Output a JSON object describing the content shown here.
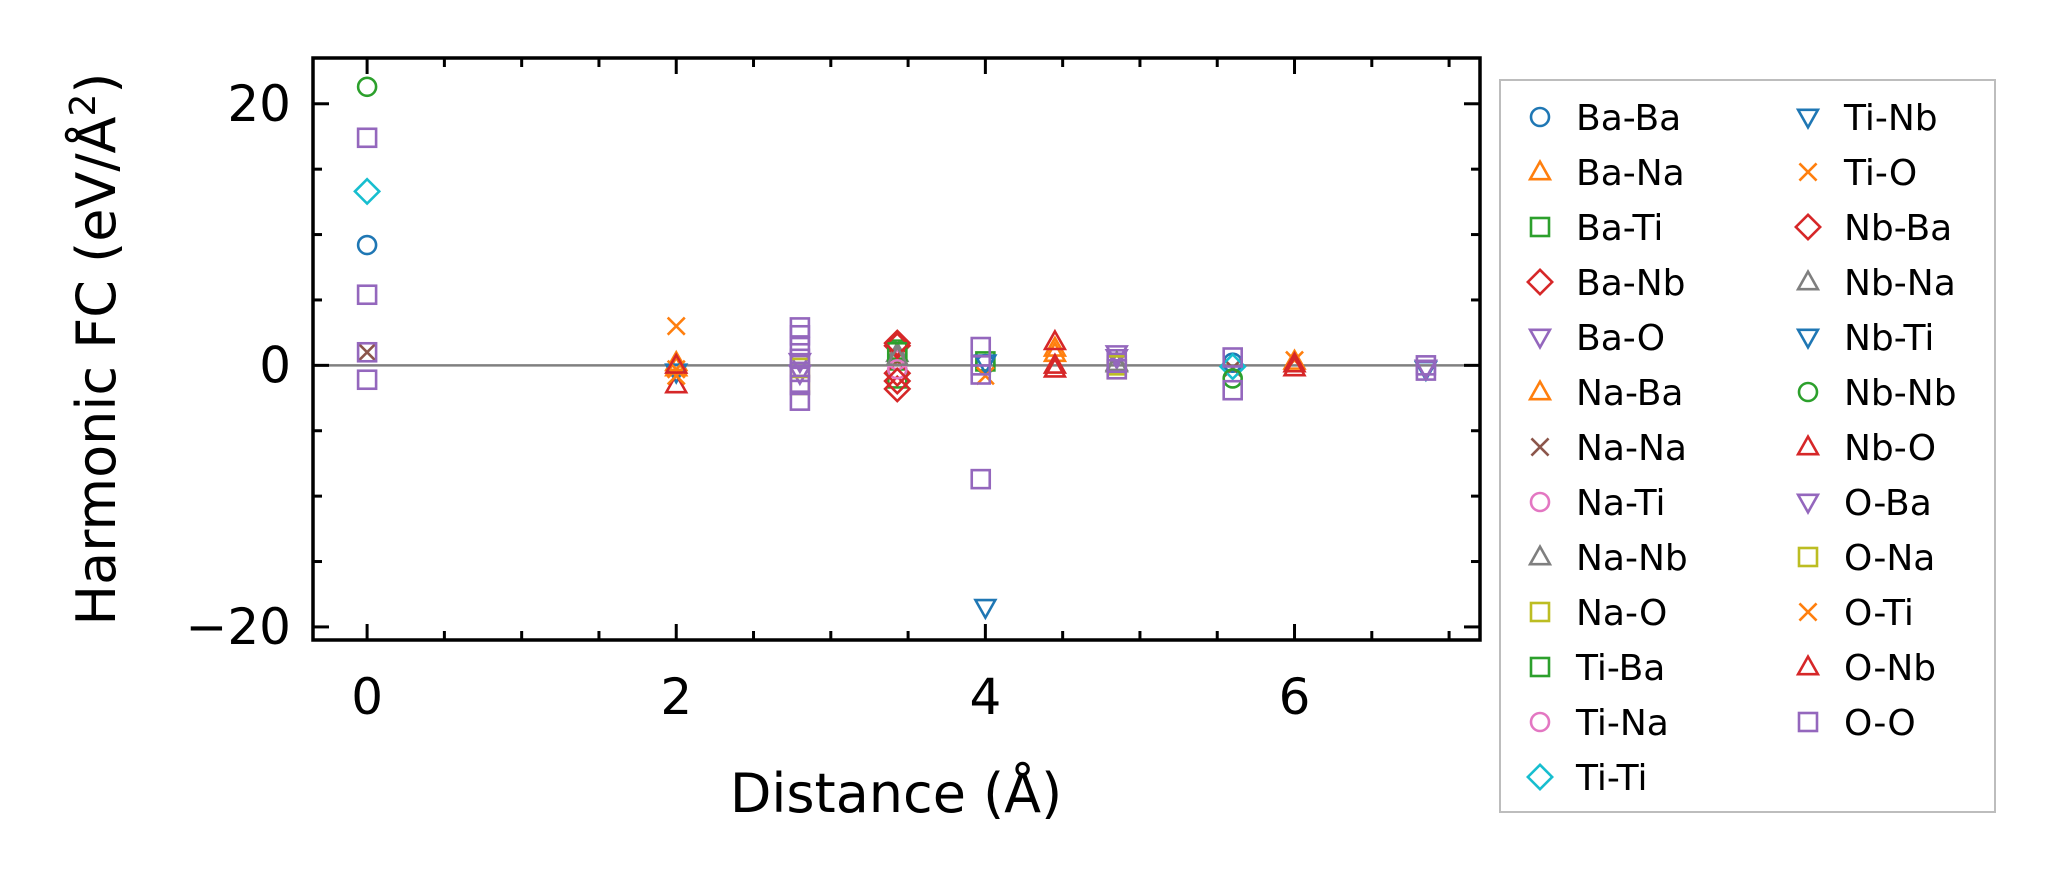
{
  "chart_data": {
    "type": "scatter",
    "title": "",
    "xlabel": "Distance (Å)",
    "ylabel": "Harmonic FC (eV/Å²)",
    "xlim": [
      -0.35,
      7.2
    ],
    "ylim": [
      -21,
      23.5
    ],
    "xticks": [
      0,
      2,
      4,
      6
    ],
    "yticks": [
      -20,
      0,
      20
    ],
    "xtick_labels": [
      "0",
      "2",
      "4",
      "6"
    ],
    "ytick_labels": [
      "−20",
      "0",
      "20"
    ],
    "zero_line": true,
    "grid": false,
    "legend": {
      "position": "right-outside",
      "columns": 2
    },
    "series": [
      {
        "name": "Ba-Ba",
        "marker": "circle",
        "color": "#1f77b4",
        "points": [
          [
            0,
            9.2
          ],
          [
            4.0,
            0.1
          ],
          [
            5.6,
            0.2
          ]
        ]
      },
      {
        "name": "Ba-Na",
        "marker": "triangle-up",
        "color": "#ff7f0e",
        "points": [
          [
            2.0,
            0.2
          ],
          [
            4.45,
            1.3
          ],
          [
            6.0,
            0.3
          ]
        ]
      },
      {
        "name": "Ba-Ti",
        "marker": "square",
        "color": "#2ca02c",
        "points": [
          [
            3.43,
            1.2
          ],
          [
            3.43,
            -1.0
          ]
        ]
      },
      {
        "name": "Ba-Nb",
        "marker": "diamond",
        "color": "#d62728",
        "points": [
          [
            3.43,
            1.5
          ],
          [
            3.43,
            -0.6
          ],
          [
            3.43,
            -1.8
          ]
        ]
      },
      {
        "name": "Ba-O",
        "marker": "triangle-down",
        "color": "#9467bd",
        "points": [
          [
            2.8,
            0.3
          ],
          [
            4.85,
            0.6
          ]
        ]
      },
      {
        "name": "Na-Ba",
        "marker": "triangle-up",
        "color": "#ff7f0e",
        "points": [
          [
            2.0,
            -0.2
          ],
          [
            4.45,
            0.9
          ]
        ]
      },
      {
        "name": "Na-Na",
        "marker": "x",
        "color": "#8c564b",
        "points": [
          [
            0,
            1.0
          ],
          [
            5.6,
            -0.2
          ]
        ]
      },
      {
        "name": "Na-Ti",
        "marker": "circle",
        "color": "#e377c2",
        "points": [
          [
            3.43,
            0.4
          ]
        ]
      },
      {
        "name": "Na-Nb",
        "marker": "triangle-up",
        "color": "#7f7f7f",
        "points": [
          [
            3.43,
            0.9
          ],
          [
            4.85,
            0.2
          ]
        ]
      },
      {
        "name": "Na-O",
        "marker": "square",
        "color": "#bcbd22",
        "points": [
          [
            2.8,
            -1.5
          ],
          [
            4.85,
            -0.3
          ]
        ]
      },
      {
        "name": "Ti-Ba",
        "marker": "square",
        "color": "#2ca02c",
        "points": [
          [
            3.43,
            1.0
          ],
          [
            4.0,
            0.3
          ]
        ]
      },
      {
        "name": "Ti-Na",
        "marker": "circle",
        "color": "#e377c2",
        "points": [
          [
            3.43,
            -0.3
          ]
        ]
      },
      {
        "name": "Ti-Ti",
        "marker": "diamond",
        "color": "#17becf",
        "points": [
          [
            0,
            13.3
          ],
          [
            5.6,
            -0.1
          ]
        ]
      },
      {
        "name": "Ti-Nb",
        "marker": "triangle-down",
        "color": "#1f77b4",
        "points": [
          [
            2.0,
            -0.5
          ],
          [
            4.0,
            0.2
          ]
        ]
      },
      {
        "name": "Ti-O",
        "marker": "x",
        "color": "#ff7f0e",
        "points": [
          [
            2.0,
            3.0
          ],
          [
            2.0,
            -0.3
          ],
          [
            6.0,
            0.4
          ]
        ]
      },
      {
        "name": "Nb-Ba",
        "marker": "diamond",
        "color": "#d62728",
        "points": [
          [
            3.43,
            1.7
          ],
          [
            3.43,
            -1.2
          ]
        ]
      },
      {
        "name": "Nb-Na",
        "marker": "triangle-up",
        "color": "#7f7f7f",
        "points": [
          [
            3.43,
            0.6
          ],
          [
            4.85,
            0.1
          ]
        ]
      },
      {
        "name": "Nb-Ti",
        "marker": "triangle-down",
        "color": "#1f77b4",
        "points": [
          [
            4.0,
            -18.5
          ],
          [
            6.85,
            -0.3
          ]
        ]
      },
      {
        "name": "Nb-Nb",
        "marker": "circle",
        "color": "#2ca02c",
        "points": [
          [
            0,
            21.3
          ],
          [
            5.6,
            -1.0
          ]
        ]
      },
      {
        "name": "Nb-O",
        "marker": "triangle-up",
        "color": "#d62728",
        "points": [
          [
            2.0,
            -1.5
          ],
          [
            4.45,
            1.8
          ],
          [
            4.45,
            -0.3
          ],
          [
            6.0,
            0.1
          ]
        ]
      },
      {
        "name": "O-Ba",
        "marker": "triangle-down",
        "color": "#9467bd",
        "points": [
          [
            2.8,
            -0.6
          ],
          [
            4.85,
            0.9
          ],
          [
            6.85,
            -0.2
          ]
        ]
      },
      {
        "name": "O-Na",
        "marker": "square",
        "color": "#bcbd22",
        "points": [
          [
            2.8,
            -0.2
          ],
          [
            4.85,
            0.0
          ]
        ]
      },
      {
        "name": "O-Ti",
        "marker": "x",
        "color": "#ff7f0e",
        "points": [
          [
            2.0,
            -0.8
          ],
          [
            4.0,
            -0.8
          ]
        ]
      },
      {
        "name": "O-Nb",
        "marker": "triangle-up",
        "color": "#d62728",
        "points": [
          [
            2.0,
            0.0
          ],
          [
            4.45,
            0.0
          ],
          [
            6.0,
            -0.2
          ]
        ]
      },
      {
        "name": "O-O",
        "marker": "square",
        "color": "#9467bd",
        "points": [
          [
            0,
            17.4
          ],
          [
            0,
            5.4
          ],
          [
            0,
            1.0
          ],
          [
            0,
            -1.1
          ],
          [
            2.8,
            2.9
          ],
          [
            2.8,
            2.3
          ],
          [
            2.8,
            1.4
          ],
          [
            2.8,
            0.5
          ],
          [
            2.8,
            -0.5
          ],
          [
            2.8,
            -1.5
          ],
          [
            2.8,
            -2.7
          ],
          [
            3.97,
            1.4
          ],
          [
            3.97,
            0.0
          ],
          [
            3.97,
            -0.7
          ],
          [
            3.97,
            -8.7
          ],
          [
            4.85,
            0.2
          ],
          [
            4.85,
            -0.3
          ],
          [
            5.6,
            0.6
          ],
          [
            5.6,
            -1.9
          ],
          [
            6.85,
            0.0
          ],
          [
            6.85,
            -0.4
          ]
        ]
      }
    ]
  }
}
